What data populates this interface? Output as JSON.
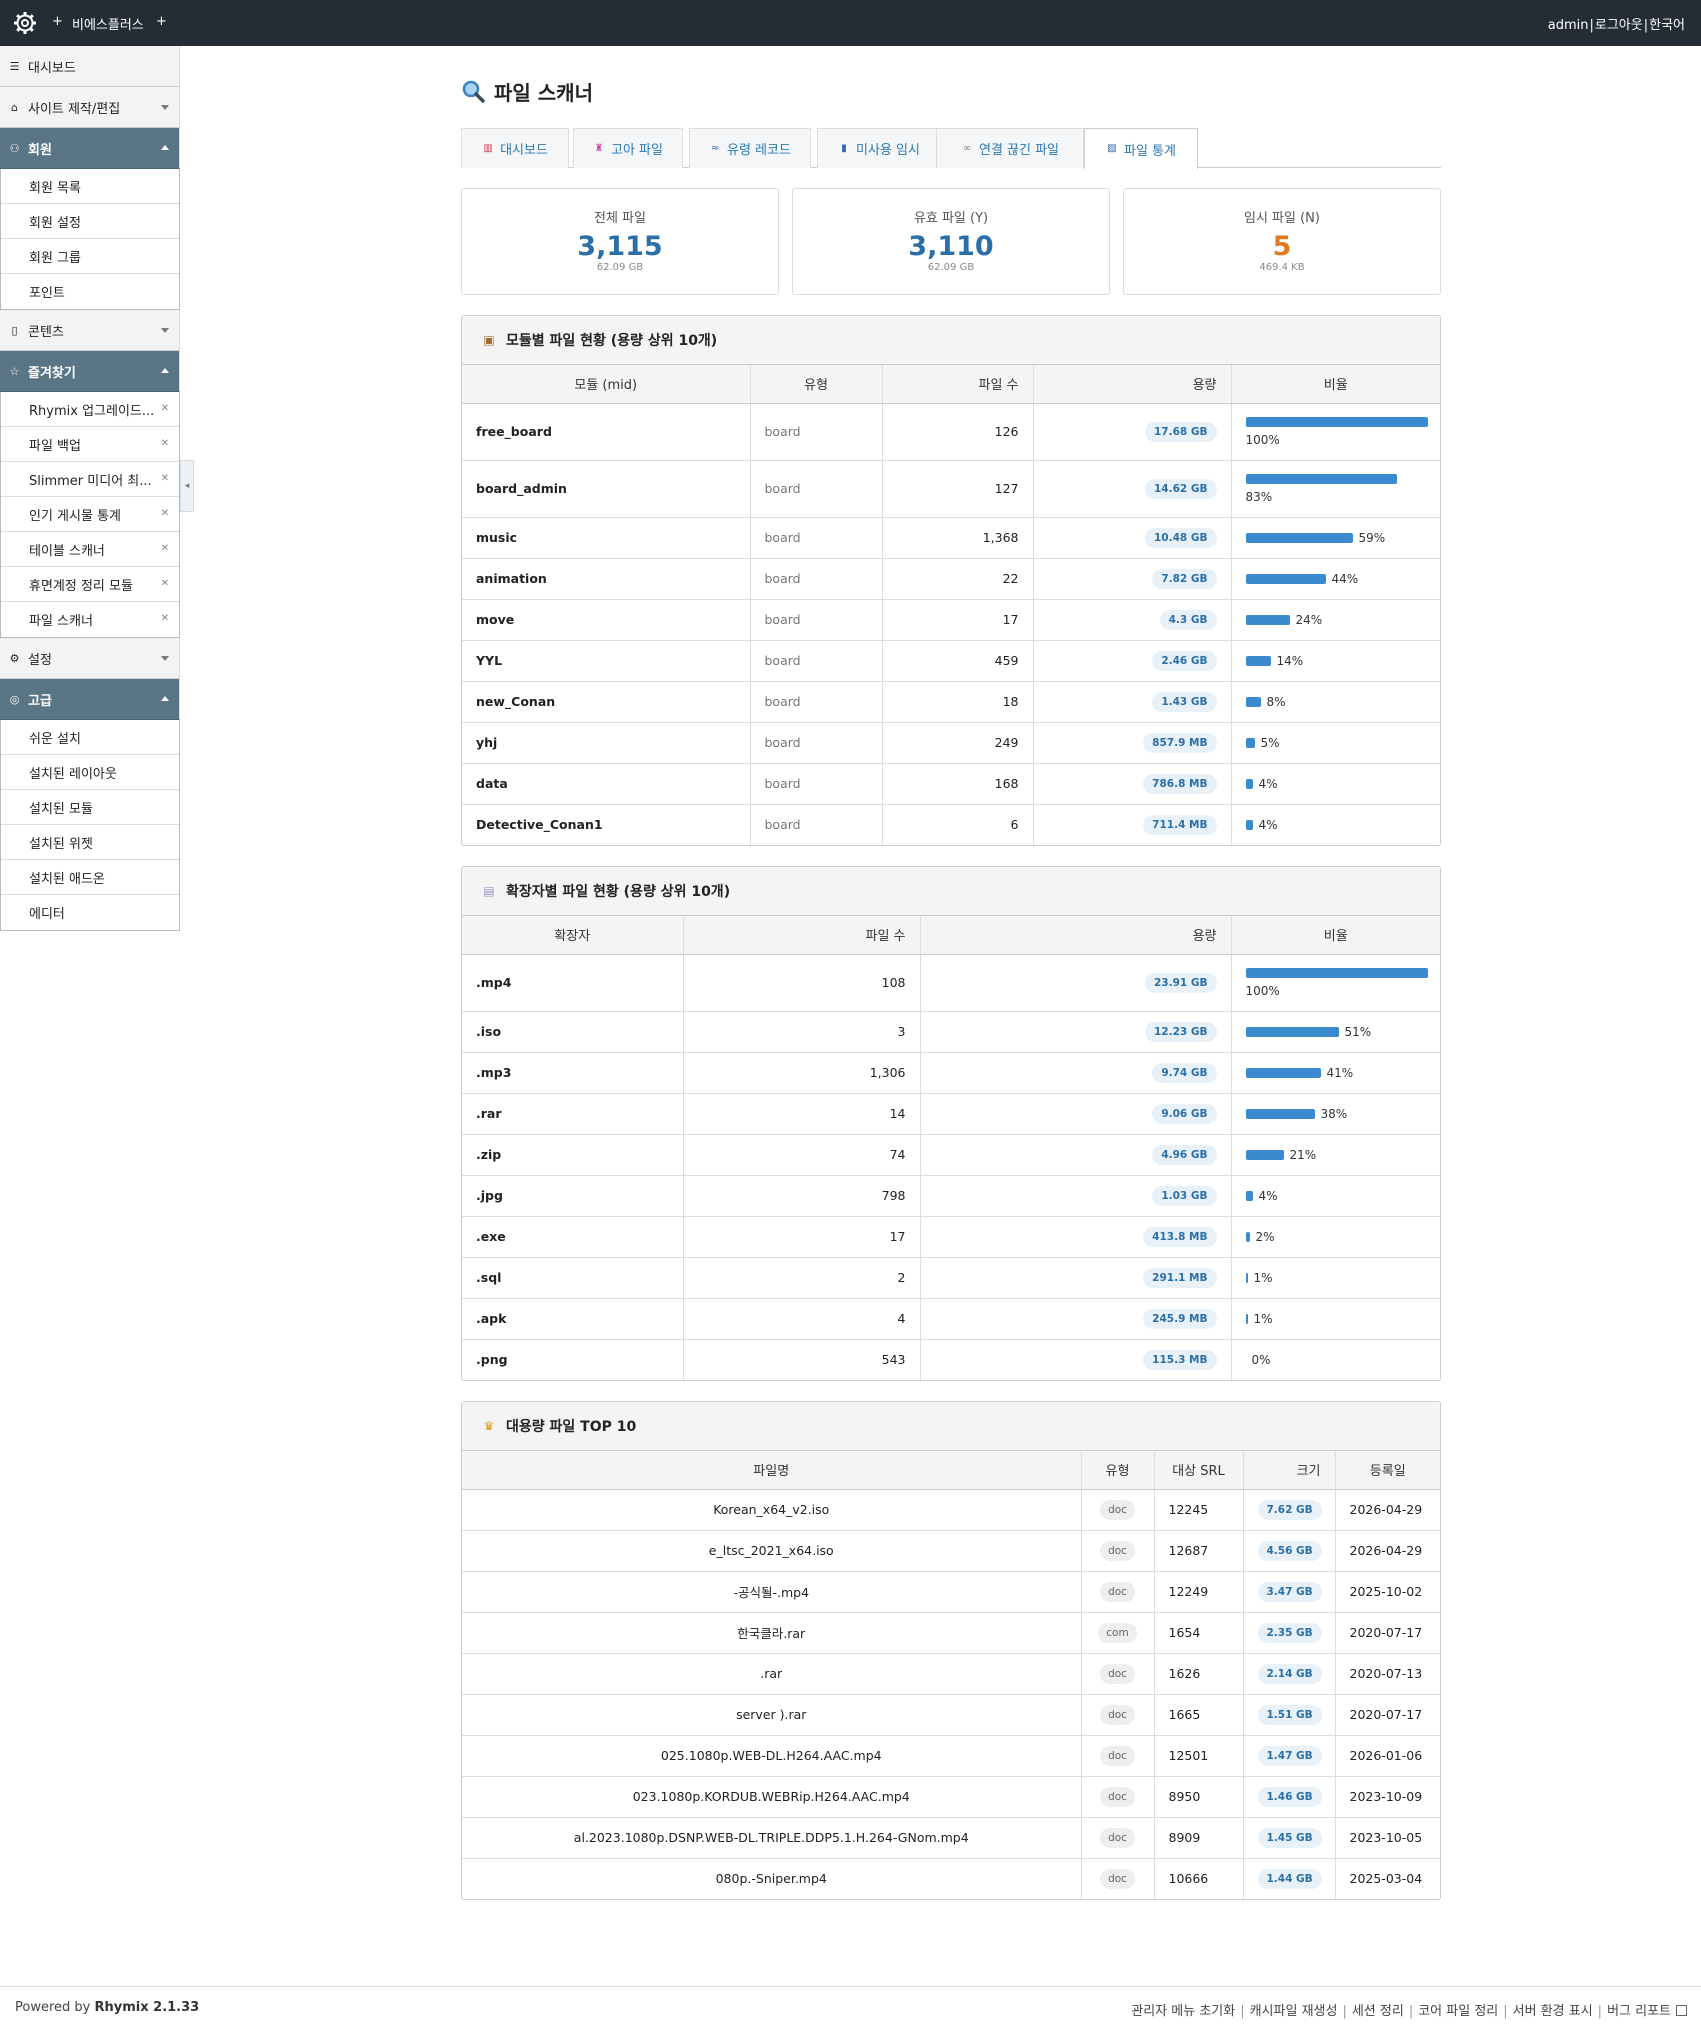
{
  "topbar": {
    "site_name": "비에스플러스",
    "admin": "admin",
    "logout": "로그아웃",
    "lang": "한국어"
  },
  "sidebar": {
    "dashboard": "대시보드",
    "site_edit": "사이트 제작/편집",
    "member": "회원",
    "member_items": [
      "회원 목록",
      "회원 설정",
      "회원 그룹",
      "포인트"
    ],
    "contents": "콘텐츠",
    "favorites": "즐겨찾기",
    "favorite_items": [
      "Rhymix 업그레이드...",
      "파일 백업",
      "Slimmer 미디어 최...",
      "인기 게시물 통계",
      "테이블 스캐너",
      "휴면계정 정리 모듈",
      "파일 스캐너"
    ],
    "settings": "설정",
    "advanced": "고급",
    "advanced_items": [
      "쉬운 설치",
      "설치된 레이아웃",
      "설치된 모듈",
      "설치된 위젯",
      "설치된 애드온",
      "에디터"
    ]
  },
  "page": {
    "title": "파일 스캐너",
    "tabs": [
      "대시보드",
      "고아 파일",
      "유령 레코드",
      "미사용 임시",
      "연결 끊긴 파일",
      "파일 통계"
    ],
    "active_tab": 5
  },
  "cards": [
    {
      "label": "전체 파일",
      "count": "3,115",
      "size": "62.09 GB"
    },
    {
      "label": "유효 파일 (Y)",
      "count": "3,110",
      "size": "62.09 GB"
    },
    {
      "label": "임시 파일 (N)",
      "count": "5",
      "size": "469.4 KB"
    }
  ],
  "module_table": {
    "title": "모듈별 파일 현황 (용량 상위 10개)",
    "headers": [
      "모듈 (mid)",
      "유형",
      "파일 수",
      "용량",
      "비율"
    ],
    "rows": [
      {
        "mid": "free_board",
        "type": "board",
        "count": "126",
        "size": "17.68 GB",
        "pct": 100,
        "pct_label": "100%"
      },
      {
        "mid": "board_admin",
        "type": "board",
        "count": "127",
        "size": "14.62 GB",
        "pct": 83,
        "pct_label": "83%"
      },
      {
        "mid": "music",
        "type": "board",
        "count": "1,368",
        "size": "10.48 GB",
        "pct": 59,
        "pct_label": "59%"
      },
      {
        "mid": "animation",
        "type": "board",
        "count": "22",
        "size": "7.82 GB",
        "pct": 44,
        "pct_label": "44%"
      },
      {
        "mid": "move",
        "type": "board",
        "count": "17",
        "size": "4.3 GB",
        "pct": 24,
        "pct_label": "24%"
      },
      {
        "mid": "YYL",
        "type": "board",
        "count": "459",
        "size": "2.46 GB",
        "pct": 14,
        "pct_label": "14%"
      },
      {
        "mid": "new_Conan",
        "type": "board",
        "count": "18",
        "size": "1.43 GB",
        "pct": 8,
        "pct_label": "8%"
      },
      {
        "mid": "yhj",
        "type": "board",
        "count": "249",
        "size": "857.9 MB",
        "pct": 5,
        "pct_label": "5%"
      },
      {
        "mid": "data",
        "type": "board",
        "count": "168",
        "size": "786.8 MB",
        "pct": 4,
        "pct_label": "4%"
      },
      {
        "mid": "Detective_Conan1",
        "type": "board",
        "count": "6",
        "size": "711.4 MB",
        "pct": 4,
        "pct_label": "4%"
      }
    ]
  },
  "ext_table": {
    "title": "확장자별 파일 현황 (용량 상위 10개)",
    "headers": [
      "확장자",
      "파일 수",
      "용량",
      "비율"
    ],
    "rows": [
      {
        "ext": ".mp4",
        "count": "108",
        "size": "23.91 GB",
        "pct": 100,
        "pct_label": "100%"
      },
      {
        "ext": ".iso",
        "count": "3",
        "size": "12.23 GB",
        "pct": 51,
        "pct_label": "51%"
      },
      {
        "ext": ".mp3",
        "count": "1,306",
        "size": "9.74 GB",
        "pct": 41,
        "pct_label": "41%"
      },
      {
        "ext": ".rar",
        "count": "14",
        "size": "9.06 GB",
        "pct": 38,
        "pct_label": "38%"
      },
      {
        "ext": ".zip",
        "count": "74",
        "size": "4.96 GB",
        "pct": 21,
        "pct_label": "21%"
      },
      {
        "ext": ".jpg",
        "count": "798",
        "size": "1.03 GB",
        "pct": 4,
        "pct_label": "4%"
      },
      {
        "ext": ".exe",
        "count": "17",
        "size": "413.8 MB",
        "pct": 2,
        "pct_label": "2%"
      },
      {
        "ext": ".sql",
        "count": "2",
        "size": "291.1 MB",
        "pct": 1,
        "pct_label": "1%"
      },
      {
        "ext": ".apk",
        "count": "4",
        "size": "245.9 MB",
        "pct": 1,
        "pct_label": "1%"
      },
      {
        "ext": ".png",
        "count": "543",
        "size": "115.3 MB",
        "pct": 0,
        "pct_label": "0%"
      }
    ]
  },
  "top_table": {
    "title": "대용량 파일 TOP 10",
    "headers": [
      "파일명",
      "유형",
      "대상 SRL",
      "크기",
      "등록일"
    ],
    "rows": [
      {
        "name": "Korean_x64_v2.iso",
        "type": "doc",
        "srl": "12245",
        "size": "7.62 GB",
        "date": "2026-04-29"
      },
      {
        "name": "e_ltsc_2021_x64.iso",
        "type": "doc",
        "srl": "12687",
        "size": "4.56 GB",
        "date": "2026-04-29"
      },
      {
        "name": "-공식될-.mp4",
        "type": "doc",
        "srl": "12249",
        "size": "3.47 GB",
        "date": "2025-10-02"
      },
      {
        "name": "한국클라.rar",
        "type": "com",
        "srl": "1654",
        "size": "2.35 GB",
        "date": "2020-07-17"
      },
      {
        "name": ".rar",
        "type": "doc",
        "srl": "1626",
        "size": "2.14 GB",
        "date": "2020-07-13"
      },
      {
        "name": "server ).rar",
        "type": "doc",
        "srl": "1665",
        "size": "1.51 GB",
        "date": "2020-07-17"
      },
      {
        "name": "025.1080p.WEB-DL.H264.AAC.mp4",
        "type": "doc",
        "srl": "12501",
        "size": "1.47 GB",
        "date": "2026-01-06"
      },
      {
        "name": "023.1080p.KORDUB.WEBRip.H264.AAC.mp4",
        "type": "doc",
        "srl": "8950",
        "size": "1.46 GB",
        "date": "2023-10-09"
      },
      {
        "name": "al.2023.1080p.DSNP.WEB-DL.TRIPLE.DDP5.1.H.264-GNom.mp4",
        "type": "doc",
        "srl": "8909",
        "size": "1.45 GB",
        "date": "2023-10-05"
      },
      {
        "name": "080p.-Sniper.mp4",
        "type": "doc",
        "srl": "10666",
        "size": "1.44 GB",
        "date": "2025-03-04"
      }
    ]
  },
  "footer": {
    "powered_by": "Powered by",
    "rhymix": "Rhymix 2.1.33",
    "links": [
      "관리자 메뉴 초기화",
      "캐시파일 재생성",
      "세션 정리",
      "코어 파일 정리",
      "서버 환경 표시",
      "버그 리포트"
    ]
  }
}
